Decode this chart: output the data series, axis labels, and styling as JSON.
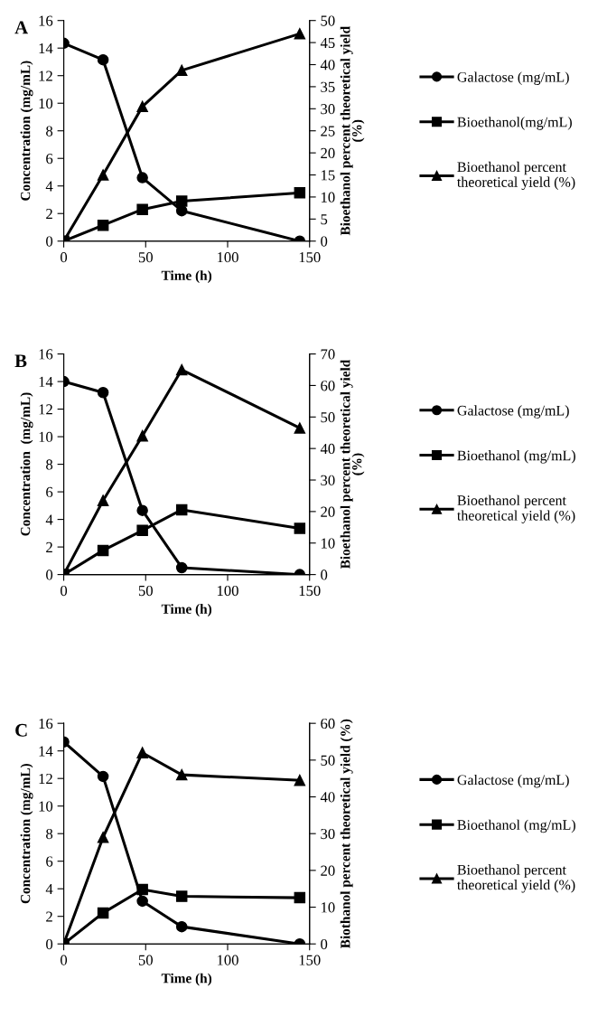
{
  "chart_data": [
    {
      "type": "line",
      "title": "A",
      "xlabel": "Time (h)",
      "ylabel": "Concentration (mg/mL)",
      "y2label": "Bioethanol percent theoretical yield (%)",
      "x": [
        0,
        24,
        48,
        72,
        144
      ],
      "xlim": [
        0,
        150
      ],
      "xticks": [
        0,
        50,
        100,
        150
      ],
      "ylim": [
        0,
        16
      ],
      "yticks": [
        0,
        2,
        4,
        6,
        8,
        10,
        12,
        14,
        16
      ],
      "y2lim": [
        0,
        50
      ],
      "y2ticks": [
        0,
        5,
        10,
        15,
        20,
        25,
        30,
        35,
        40,
        45,
        50
      ],
      "grid": false,
      "legend": "right",
      "series": [
        {
          "name": "Galactose (mg/mL)",
          "color": "#000000",
          "marker": "circle",
          "values": [
            14.35,
            13.15,
            4.6,
            2.2,
            0
          ]
        },
        {
          "name": "Bioethanol(mg/mL)",
          "color": "#000000",
          "marker": "square",
          "values": [
            0,
            1.15,
            2.3,
            2.9,
            3.5
          ]
        },
        {
          "name": "Bioethanol percent theoretical yield (%)",
          "color": "#000000",
          "marker": "triangle",
          "axis": "y2",
          "values": [
            0,
            15,
            30.5,
            38.7,
            47
          ]
        }
      ]
    },
    {
      "type": "line",
      "title": "B",
      "xlabel": "Time (h)",
      "ylabel": "Concentration  (mg/mL)",
      "y2label": "Bioethanol percent theoretical yield (%)",
      "x": [
        0,
        24,
        48,
        72,
        144
      ],
      "xlim": [
        0,
        150
      ],
      "xticks": [
        0,
        50,
        100,
        150
      ],
      "ylim": [
        0,
        16
      ],
      "yticks": [
        0,
        2,
        4,
        6,
        8,
        10,
        12,
        14,
        16
      ],
      "y2lim": [
        0,
        70
      ],
      "y2ticks": [
        0,
        10,
        20,
        30,
        40,
        50,
        60,
        70
      ],
      "grid": false,
      "legend": "right",
      "series": [
        {
          "name": "Galactose (mg/mL)",
          "color": "#000000",
          "marker": "circle",
          "values": [
            14,
            13.2,
            4.65,
            0.5,
            0
          ]
        },
        {
          "name": "Bioethanol (mg/mL)",
          "color": "#000000",
          "marker": "square",
          "values": [
            0,
            1.75,
            3.2,
            4.7,
            3.35
          ]
        },
        {
          "name": "Bioethanol percent theoretical yield (%)",
          "color": "#000000",
          "marker": "triangle",
          "axis": "y2",
          "values": [
            0,
            23.5,
            44,
            65,
            46.5
          ]
        }
      ]
    },
    {
      "type": "line",
      "title": "C",
      "xlabel": "Time (h)",
      "ylabel": "Concentration (mg/mL)",
      "y2label": "Biothanol percent theoretical yield (%)",
      "x": [
        0,
        24,
        48,
        72,
        144
      ],
      "xlim": [
        0,
        150
      ],
      "xticks": [
        0,
        50,
        100,
        150
      ],
      "ylim": [
        0,
        16
      ],
      "yticks": [
        0,
        2,
        4,
        6,
        8,
        10,
        12,
        14,
        16
      ],
      "y2lim": [
        0,
        60
      ],
      "y2ticks": [
        0,
        10,
        20,
        30,
        40,
        50,
        60
      ],
      "grid": false,
      "legend": "right",
      "series": [
        {
          "name": "Galactose (mg/mL)",
          "color": "#000000",
          "marker": "circle",
          "values": [
            14.65,
            12.15,
            3.1,
            1.25,
            0
          ]
        },
        {
          "name": "Bioethanol (mg/mL)",
          "color": "#000000",
          "marker": "square",
          "values": [
            0,
            2.25,
            3.95,
            3.45,
            3.35
          ]
        },
        {
          "name": "Bioethanol percent theoretical yield (%)",
          "color": "#000000",
          "marker": "triangle",
          "axis": "y2",
          "values": [
            0,
            29,
            52,
            46,
            44.5
          ]
        }
      ]
    }
  ]
}
